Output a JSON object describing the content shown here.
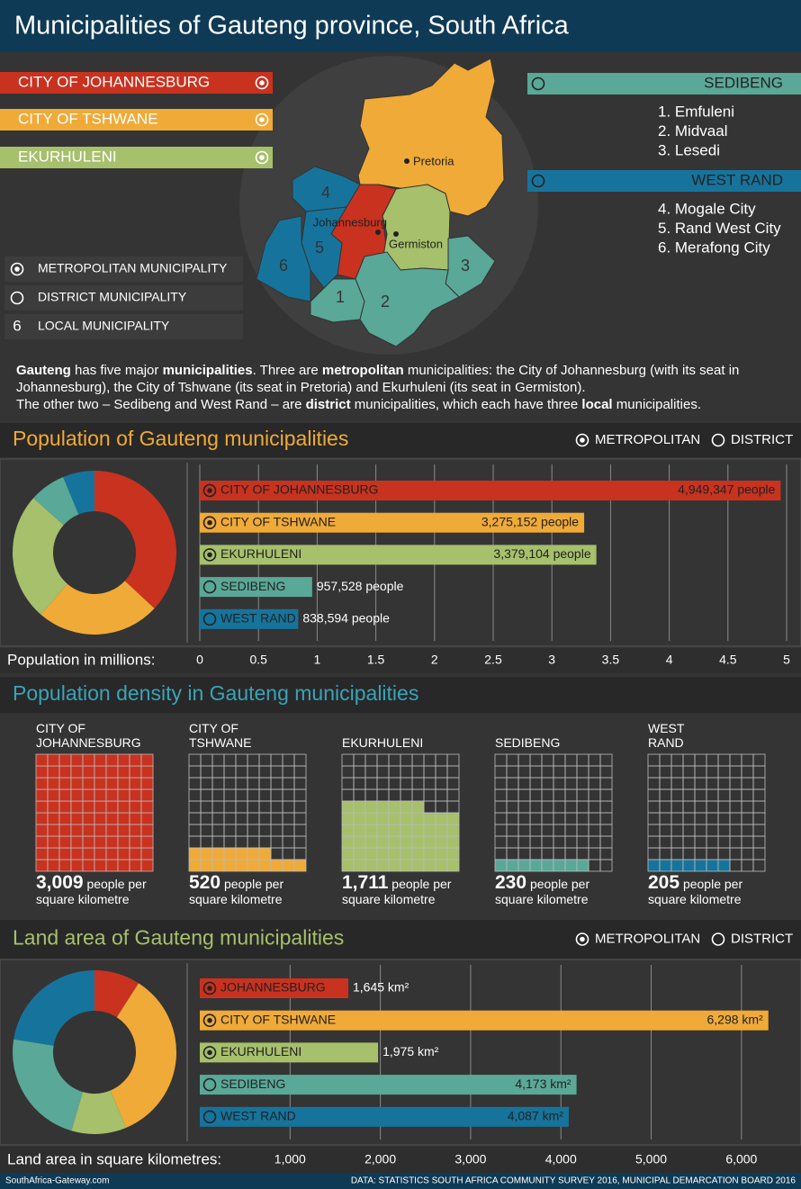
{
  "header": {
    "title": "Municipalities of Gauteng province, South Africa"
  },
  "map": {
    "metropolitan": [
      {
        "name": "CITY OF JOHANNESBURG",
        "color": "#c8321f"
      },
      {
        "name": "CITY OF TSHWANE",
        "color": "#f0aa37"
      },
      {
        "name": "EKURHULENI",
        "color": "#a6c06b"
      }
    ],
    "district": [
      {
        "name": "SEDIBENG",
        "color": "#5aa897",
        "local": [
          "1. Emfuleni",
          "2. Midvaal",
          "3. Lesedi"
        ]
      },
      {
        "name": "WEST RAND",
        "color": "#16749c",
        "local": [
          "4. Mogale City",
          "5. Rand West City",
          "6. Merafong City"
        ]
      }
    ],
    "cities": [
      "Pretoria",
      "Johannesburg",
      "Germiston"
    ],
    "region_numbers": [
      "1",
      "2",
      "3",
      "4",
      "5",
      "6"
    ],
    "key": {
      "labels": [
        "METROPOLITAN MUNICIPALITY",
        "DISTRICT MUNICIPALITY",
        "LOCAL MUNICIPALITY"
      ],
      "local_symbol": "6"
    }
  },
  "intro": {
    "paragraphs": [
      [
        {
          "text": "Gauteng",
          "bold": true
        },
        {
          "text": " has five major "
        },
        {
          "text": "municipalities",
          "bold": true
        },
        {
          "text": ". Three are "
        },
        {
          "text": "metropolitan",
          "bold": true
        },
        {
          "text": " municipalities: the City of Johannesburg (with its seat in Johannesburg), the City of Tshwane (its seat in Pretoria) and Ekurhuleni (its seat in Germiston)."
        }
      ],
      [
        {
          "text": "The other two – Sedibeng and West Rand – are "
        },
        {
          "text": "district",
          "bold": true
        },
        {
          "text": " municipalities, which each have three "
        },
        {
          "text": "local",
          "bold": true
        },
        {
          "text": " municipalities."
        }
      ]
    ]
  },
  "chart_data": [
    {
      "type": "bar",
      "title": "Population of Gauteng municipalities",
      "title_color": "#f0aa37",
      "legend": [
        "METROPOLITAN",
        "DISTRICT"
      ],
      "categories": [
        "CITY OF JOHANNESBURG",
        "CITY OF TSHWANE",
        "EKURHULENI",
        "SEDIBENG",
        "WEST RAND"
      ],
      "values": [
        4.949347,
        3.275152,
        3.379104,
        0.957528,
        0.838594
      ],
      "value_labels": [
        "4,949,347 people",
        "3,275,152 people",
        "3,379,104 people",
        "957,528 people",
        "838,594 people"
      ],
      "metropolitan": [
        true,
        true,
        true,
        false,
        false
      ],
      "colors": [
        "#c8321f",
        "#f0aa37",
        "#a6c06b",
        "#5aa897",
        "#16749c"
      ],
      "donut": true,
      "x_label": "Population in millions:",
      "xlim": [
        0,
        5
      ],
      "xticks": [
        0,
        0.5,
        1,
        1.5,
        2,
        2.5,
        3,
        3.5,
        4,
        4.5,
        5
      ],
      "grid": true
    },
    {
      "type": "waffle",
      "title": "Population density in Gauteng municipalities",
      "title_color": "#3aa3b8",
      "categories": [
        "CITY OF JOHANNESBURG",
        "CITY OF TSHWANE",
        "EKURHULENI",
        "SEDIBENG",
        "WEST RAND"
      ],
      "values": [
        3009,
        520,
        1711,
        230,
        205
      ],
      "value_labels": [
        "3,009",
        "520",
        "1,711",
        "230",
        "205"
      ],
      "unit": "people per square kilometre",
      "colors": [
        "#c8321f",
        "#f0aa37",
        "#a6c06b",
        "#5aa897",
        "#16749c"
      ]
    },
    {
      "type": "bar",
      "title": "Land area of Gauteng municipalities",
      "title_color": "#a6c06b",
      "legend": [
        "METROPOLITAN",
        "DISTRICT"
      ],
      "categories": [
        "JOHANNESBURG",
        "CITY OF TSHWANE",
        "EKURHULENI",
        "SEDIBENG",
        "WEST RAND"
      ],
      "values": [
        1645,
        6298,
        1975,
        4173,
        4087
      ],
      "value_labels": [
        "1,645 km²",
        "6,298 km²",
        "1,975 km²",
        "4,173 km²",
        "4,087 km²"
      ],
      "metropolitan": [
        true,
        true,
        true,
        false,
        false
      ],
      "colors": [
        "#c8321f",
        "#f0aa37",
        "#a6c06b",
        "#5aa897",
        "#16749c"
      ],
      "donut": true,
      "x_label": "Land area in square kilometres:",
      "xlim": [
        0,
        6500
      ],
      "xticks": [
        {
          "value": 1000,
          "label": "1,000"
        },
        {
          "value": 2000,
          "label": "2,000"
        },
        {
          "value": 3000,
          "label": "3,000"
        },
        {
          "value": 4000,
          "label": "4,000"
        },
        {
          "value": 5000,
          "label": "5,000"
        },
        {
          "value": 6000,
          "label": "6,000"
        }
      ],
      "grid": true
    }
  ],
  "footer": {
    "source_site": "SouthAfrica-Gateway.com",
    "credits": "DATA: STATISTICS SOUTH AFRICA COMMUNITY SURVEY 2016, MUNICIPAL DEMARCATION BOARD 2016"
  }
}
